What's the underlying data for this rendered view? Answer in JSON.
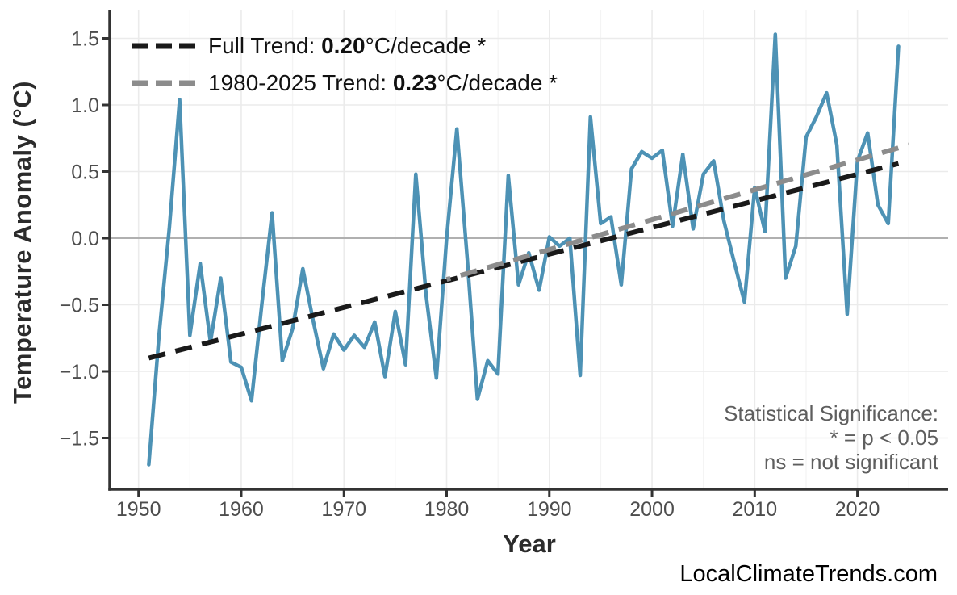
{
  "page": {
    "watermark": "LocalClimateTrends.com"
  },
  "legend": {
    "items": [
      {
        "label_prefix": "Full Trend: ",
        "value": "0.20",
        "label_suffix": "°C/decade *",
        "color": "#1a1a1a"
      },
      {
        "label_prefix": "1980-2025 Trend: ",
        "value": "0.23",
        "label_suffix": "°C/decade *",
        "color": "#8c8c8c"
      }
    ]
  },
  "annotation": {
    "title": "Statistical Significance:",
    "line2": "* = p < 0.05",
    "line3": "ns = not significant"
  },
  "chart_data": {
    "type": "line",
    "title": "",
    "xlabel": "Year",
    "ylabel": "Temperature Anomaly (°C)",
    "xlim": [
      1947.2,
      2028.9
    ],
    "ylim": [
      -1.89,
      1.71
    ],
    "grid": true,
    "legend_position": "top-left",
    "x_ticks": [
      1950,
      1960,
      1970,
      1980,
      1990,
      2000,
      2010,
      2020
    ],
    "x_tick_labels": [
      "1950",
      "1960",
      "1970",
      "1980",
      "1990",
      "2000",
      "2010",
      "2020"
    ],
    "x_minor_ticks": [
      1955,
      1965,
      1975,
      1985,
      1995,
      2005,
      2015,
      2025
    ],
    "y_ticks": [
      1.5,
      1.0,
      0.5,
      0.0,
      -0.5,
      -1.0,
      -1.5
    ],
    "y_tick_labels": [
      "1.5",
      "1.0",
      "0.5",
      "0.0",
      "−0.5",
      "−1.0",
      "−1.5"
    ],
    "series": [
      {
        "name": "Annual Temperature Anomaly",
        "type": "line",
        "color": "#4d92b5",
        "x": [
          1951,
          1952,
          1953,
          1954,
          1955,
          1956,
          1957,
          1958,
          1959,
          1960,
          1961,
          1962,
          1963,
          1964,
          1965,
          1966,
          1967,
          1968,
          1969,
          1970,
          1971,
          1972,
          1973,
          1974,
          1975,
          1976,
          1977,
          1978,
          1979,
          1980,
          1981,
          1982,
          1983,
          1984,
          1985,
          1986,
          1987,
          1988,
          1989,
          1990,
          1991,
          1992,
          1993,
          1994,
          1995,
          1996,
          1997,
          1998,
          1999,
          2000,
          2001,
          2002,
          2003,
          2004,
          2005,
          2006,
          2007,
          2008,
          2009,
          2010,
          2011,
          2012,
          2013,
          2014,
          2015,
          2016,
          2017,
          2018,
          2019,
          2020,
          2021,
          2022,
          2023,
          2024
        ],
        "values": [
          -1.7,
          -0.72,
          0.08,
          1.04,
          -0.73,
          -0.19,
          -0.78,
          -0.3,
          -0.93,
          -0.97,
          -1.22,
          -0.5,
          0.19,
          -0.92,
          -0.68,
          -0.23,
          -0.62,
          -0.98,
          -0.72,
          -0.84,
          -0.73,
          -0.82,
          -0.63,
          -1.04,
          -0.55,
          -0.95,
          0.48,
          -0.43,
          -1.05,
          0.0,
          0.82,
          -0.15,
          -1.21,
          -0.92,
          -1.02,
          0.47,
          -0.35,
          -0.11,
          -0.39,
          0.01,
          -0.06,
          0.0,
          -1.03,
          0.91,
          0.11,
          0.16,
          -0.35,
          0.52,
          0.65,
          0.6,
          0.66,
          0.09,
          0.63,
          0.07,
          0.48,
          0.58,
          0.13,
          -0.18,
          -0.48,
          0.38,
          0.05,
          1.53,
          -0.3,
          -0.06,
          0.76,
          0.91,
          1.09,
          0.7,
          -0.57,
          0.58,
          0.79,
          0.25,
          0.11,
          1.44
        ]
      },
      {
        "name": "Full Trend (0.20 °C/decade)",
        "type": "dashed-trend",
        "color": "#1a1a1a",
        "x": [
          1951,
          2024
        ],
        "values": [
          -0.9,
          0.56
        ]
      },
      {
        "name": "1980-2025 Trend (0.23 °C/decade)",
        "type": "dashed-trend",
        "color": "#8c8c8c",
        "x": [
          1980,
          2025
        ],
        "values": [
          -0.31,
          0.7
        ]
      }
    ]
  },
  "colors": {
    "background": "#ffffff",
    "grid_major": "#ebebeb",
    "grid_minor": "#f4f4f4",
    "zero_line": "#b0b0b0",
    "axis": "#333333",
    "tick_label": "#4d4d4d",
    "annotation_text": "#5e5e5e",
    "line": "#4d92b5",
    "trend_full": "#1a1a1a",
    "trend_recent": "#8c8c8c"
  }
}
